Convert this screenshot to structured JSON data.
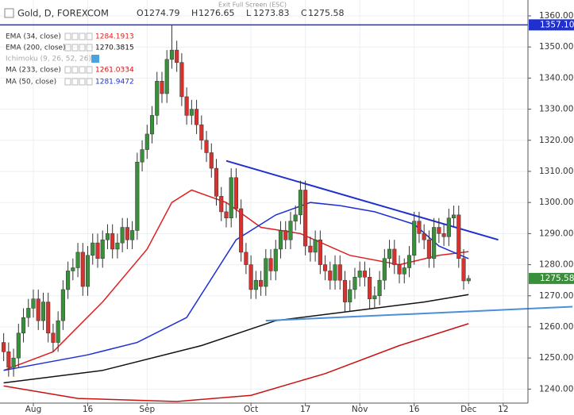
{
  "chart_data": {
    "type": "candlestick",
    "title": "Gold, D, FOREXCOM",
    "ohlc_letters": [
      "O",
      "H",
      "L",
      "C"
    ],
    "screen_note": "Exit Full Screen (ESC)",
    "hidden_indicators": [
      "Ichimoku (9, 26, 52, 26)"
    ],
    "up_color": "#3a8f3a",
    "down_color": "#d8322f",
    "grid": true,
    "ylim": [
      1235.5,
      1365.1
    ],
    "yticks": [
      {
        "value": 1240,
        "label": "1240.00"
      },
      {
        "value": 1250,
        "label": "1250.00"
      },
      {
        "value": 1260,
        "label": "1260.00"
      },
      {
        "value": 1270,
        "label": "1270.00"
      },
      {
        "value": 1280,
        "label": "1280.00"
      },
      {
        "value": 1290,
        "label": "1290.00"
      },
      {
        "value": 1300,
        "label": "1300.00"
      },
      {
        "value": 1310,
        "label": "1310.00"
      },
      {
        "value": 1320,
        "label": "1320.00"
      },
      {
        "value": 1330,
        "label": "1330.00"
      },
      {
        "value": 1340,
        "label": "1340.00"
      },
      {
        "value": 1350,
        "label": "1350.00"
      },
      {
        "value": 1360,
        "label": "1360.00"
      }
    ],
    "xticks": [
      {
        "value": 6,
        "label": "Aug"
      },
      {
        "value": 17,
        "label": "16"
      },
      {
        "value": 29,
        "label": "Sep"
      },
      {
        "value": 50,
        "label": "Oct"
      },
      {
        "value": 61,
        "label": "17"
      },
      {
        "value": 72,
        "label": "Nov"
      },
      {
        "value": 83,
        "label": "16"
      },
      {
        "value": 94,
        "label": "Dec"
      },
      {
        "value": 101,
        "label": "12"
      }
    ],
    "candles": {
      "open": [
        1255,
        1252,
        1247,
        1250,
        1258,
        1263,
        1266,
        1269,
        1262,
        1268,
        1258,
        1255,
        1262,
        1272,
        1278,
        1279,
        1284,
        1273,
        1283,
        1287,
        1282,
        1288,
        1290,
        1285,
        1287,
        1292,
        1288,
        1291,
        1313,
        1317,
        1322,
        1328,
        1339,
        1335,
        1346,
        1349,
        1345,
        1334,
        1328,
        1330,
        1325,
        1320,
        1316,
        1311,
        1302,
        1297,
        1295,
        1308,
        1298,
        1284,
        1280,
        1272,
        1275,
        1273,
        1282,
        1278,
        1285,
        1291,
        1288,
        1294,
        1296,
        1304,
        1286,
        1284,
        1288,
        1280,
        1278,
        1275,
        1280,
        1275,
        1268,
        1272,
        1276,
        1278,
        1276,
        1269,
        1270,
        1275,
        1282,
        1285,
        1280,
        1277,
        1279,
        1283,
        1294,
        1290,
        1288,
        1282,
        1292,
        1290,
        1289,
        1295,
        1296,
        1282,
        1274.79
      ],
      "high": [
        1258,
        1255,
        1253,
        1261,
        1266,
        1269,
        1272,
        1272,
        1271,
        1271,
        1261,
        1265,
        1275,
        1281,
        1282,
        1287,
        1287,
        1286,
        1290,
        1290,
        1291,
        1293,
        1293,
        1290,
        1295,
        1295,
        1294,
        1316,
        1320,
        1325,
        1331,
        1342,
        1342,
        1349,
        1357.1,
        1352,
        1348,
        1337,
        1333,
        1333,
        1328,
        1323,
        1319,
        1314,
        1305,
        1300,
        1311,
        1311,
        1301,
        1287,
        1283,
        1278,
        1278,
        1285,
        1285,
        1288,
        1294,
        1294,
        1297,
        1299,
        1307,
        1307,
        1289,
        1291,
        1291,
        1283,
        1281,
        1283,
        1283,
        1278,
        1275,
        1279,
        1281,
        1281,
        1279,
        1273,
        1278,
        1285,
        1288,
        1288,
        1283,
        1282,
        1286,
        1297,
        1297,
        1293,
        1291,
        1295,
        1295,
        1293,
        1298,
        1299,
        1299,
        1285,
        1276.65
      ],
      "low": [
        1249,
        1244,
        1244,
        1247,
        1255,
        1260,
        1263,
        1259,
        1259,
        1255,
        1252,
        1252,
        1259,
        1269,
        1275,
        1276,
        1270,
        1270,
        1280,
        1279,
        1279,
        1285,
        1282,
        1282,
        1284,
        1285,
        1285,
        1288,
        1310,
        1314,
        1319,
        1325,
        1332,
        1332,
        1343,
        1342,
        1331,
        1325,
        1325,
        1322,
        1317,
        1313,
        1308,
        1299,
        1294,
        1292,
        1292,
        1295,
        1281,
        1277,
        1269,
        1269,
        1270,
        1270,
        1275,
        1275,
        1282,
        1285,
        1285,
        1291,
        1293,
        1283,
        1281,
        1281,
        1277,
        1275,
        1272,
        1272,
        1272,
        1265,
        1265,
        1269,
        1273,
        1273,
        1266,
        1266,
        1267,
        1272,
        1279,
        1277,
        1274,
        1274,
        1276,
        1280,
        1287,
        1285,
        1279,
        1279,
        1287,
        1286,
        1286,
        1292,
        1279,
        1272,
        1273.83
      ],
      "close": [
        1252,
        1247,
        1250,
        1258,
        1263,
        1266,
        1269,
        1262,
        1268,
        1258,
        1255,
        1262,
        1272,
        1278,
        1279,
        1284,
        1273,
        1283,
        1287,
        1282,
        1288,
        1290,
        1285,
        1287,
        1292,
        1288,
        1291,
        1313,
        1317,
        1322,
        1328,
        1339,
        1335,
        1346,
        1349,
        1345,
        1334,
        1328,
        1330,
        1325,
        1320,
        1316,
        1311,
        1302,
        1297,
        1295,
        1308,
        1298,
        1284,
        1280,
        1272,
        1275,
        1273,
        1282,
        1278,
        1285,
        1291,
        1288,
        1294,
        1296,
        1304,
        1286,
        1284,
        1288,
        1280,
        1278,
        1275,
        1280,
        1275,
        1268,
        1272,
        1276,
        1278,
        1276,
        1269,
        1270,
        1275,
        1282,
        1285,
        1280,
        1277,
        1279,
        1283,
        1294,
        1290,
        1288,
        1282,
        1292,
        1290,
        1289,
        1295,
        1296,
        1282,
        1274.79,
        1275.58
      ]
    },
    "series": [
      {
        "name": "EMA (34, close)",
        "color": "#e02020",
        "x": [
          0,
          10,
          20,
          29,
          34,
          38,
          45,
          52,
          60,
          70,
          80,
          88,
          94
        ],
        "values": [
          1246,
          1252,
          1268,
          1285,
          1300,
          1304,
          1300,
          1292,
          1290,
          1283,
          1280,
          1283,
          1284.1913
        ]
      },
      {
        "name": "EMA (200, close)",
        "color": "#111111",
        "x": [
          0,
          20,
          40,
          55,
          70,
          85,
          94
        ],
        "values": [
          1242,
          1246,
          1254,
          1262,
          1265,
          1268,
          1270.3815
        ]
      },
      {
        "name": "MA (233, close)",
        "color": "#cc1111",
        "x": [
          0,
          15,
          35,
          50,
          65,
          80,
          94
        ],
        "values": [
          1241,
          1237,
          1236,
          1238,
          1245,
          1254,
          1261.0334
        ]
      },
      {
        "name": "MA (50, close)",
        "color": "#1c2fd6",
        "x": [
          0,
          17,
          27,
          37,
          47,
          55,
          62,
          68,
          75,
          83,
          88,
          94
        ],
        "values": [
          1246,
          1251,
          1255,
          1263,
          1288,
          1296,
          1300,
          1299,
          1297,
          1293,
          1286,
          1281.9472
        ]
      }
    ],
    "trendlines": [
      {
        "color": "#1f2fd0",
        "x": [
          45,
          100
        ],
        "values": [
          1313.4,
          1288
        ]
      },
      {
        "color": "#4a8fd8",
        "x": [
          53,
          115
        ],
        "values": [
          1262,
          1266.5
        ]
      }
    ],
    "hline": {
      "value": 1357.1,
      "value_label": "1357.10",
      "color": "#1f2fd0"
    }
  }
}
